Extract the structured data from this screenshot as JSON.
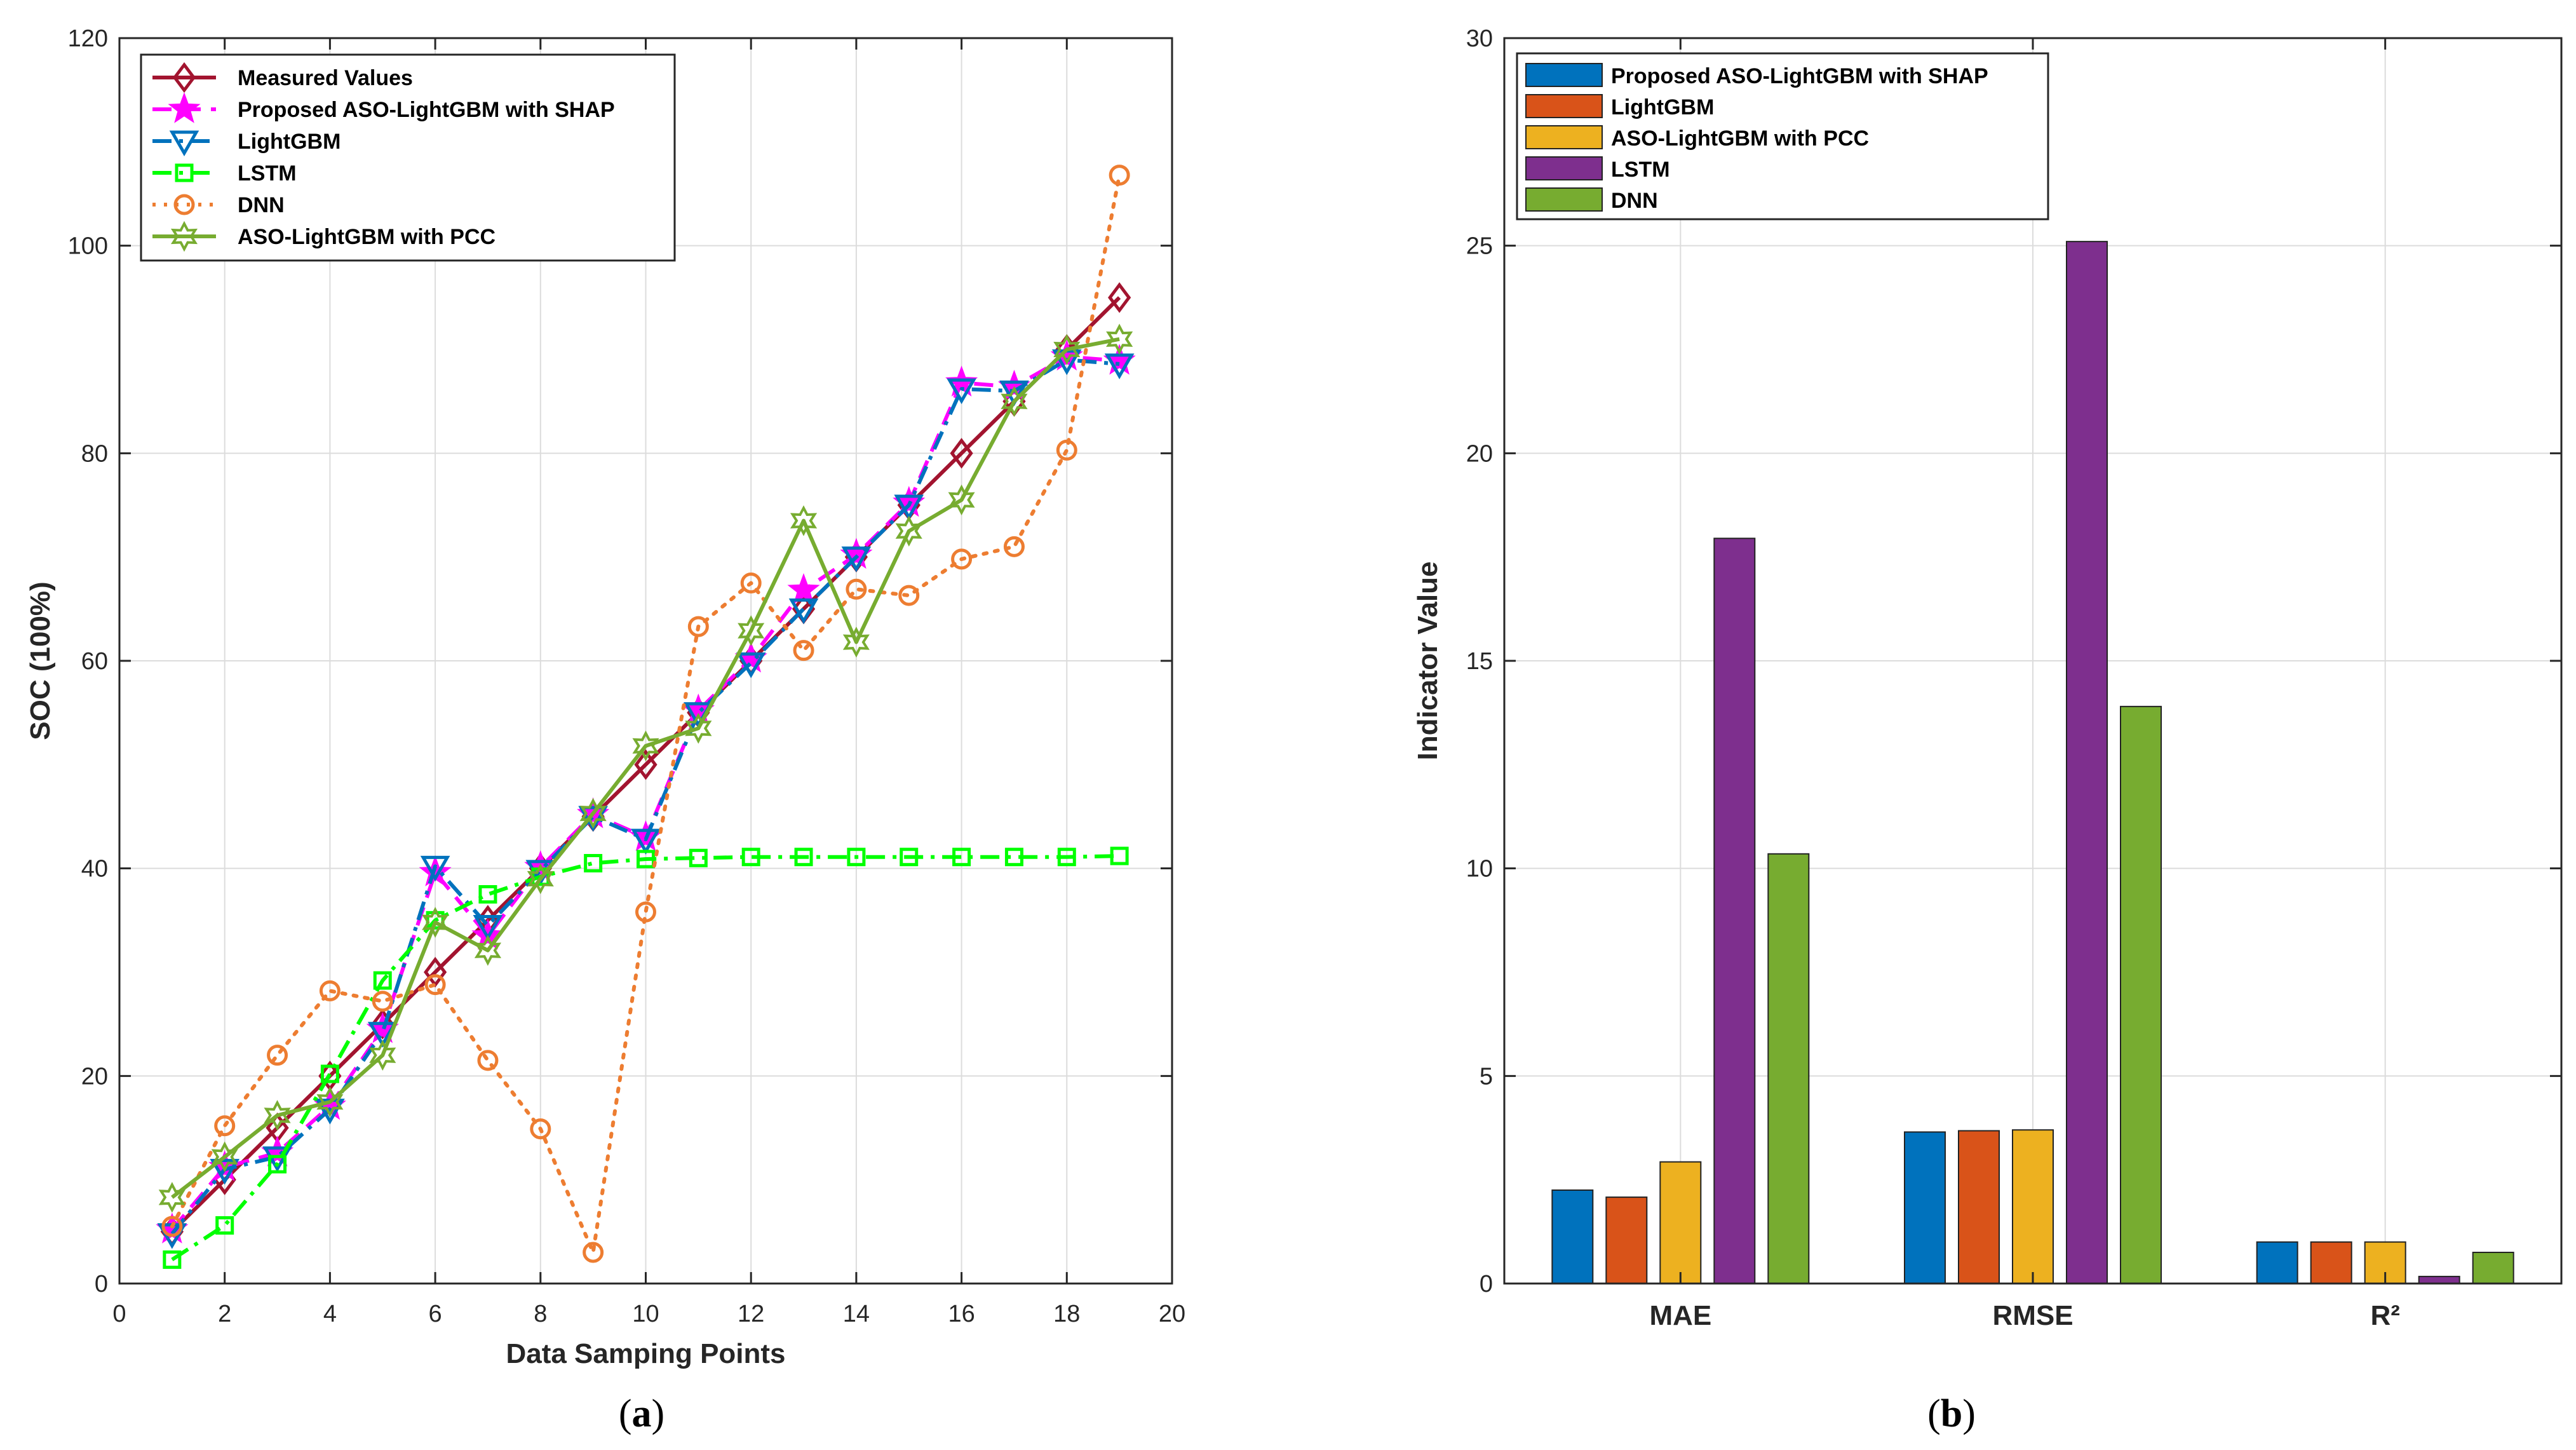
{
  "chart_data": [
    {
      "type": "line",
      "xlabel": "Data Samping Points",
      "ylabel": "SOC (100%)",
      "xlim": [
        0,
        20
      ],
      "ylim": [
        0,
        120
      ],
      "xticks": [
        0,
        2,
        4,
        6,
        8,
        10,
        12,
        14,
        16,
        18,
        20
      ],
      "yticks": [
        0,
        20,
        40,
        60,
        80,
        100,
        120
      ],
      "x": [
        1,
        2,
        3,
        4,
        5,
        6,
        7,
        8,
        9,
        10,
        11,
        12,
        13,
        14,
        15,
        16,
        17,
        18,
        19
      ],
      "legend_position": "top-left",
      "grid": true,
      "caption": {
        "open": "(",
        "letter": "a",
        "close": ")"
      },
      "series": [
        {
          "name": "Measured Values",
          "color": "#A2142F",
          "dash": "solid",
          "marker": "diamond",
          "values": [
            5,
            10,
            15,
            20,
            25,
            30,
            35,
            40,
            45,
            50,
            55,
            60,
            65,
            70,
            75,
            80,
            85,
            90,
            95
          ]
        },
        {
          "name": "Proposed ASO-LightGBM with SHAP",
          "color": "#FF00FF",
          "dash": "dash",
          "marker": "star",
          "values": [
            5.2,
            11.2,
            12.6,
            17.1,
            24.5,
            39.6,
            33.5,
            40.1,
            45.2,
            43.0,
            55.2,
            60.2,
            66.8,
            70.2,
            75.2,
            86.8,
            86.4,
            89.3,
            88.9
          ]
        },
        {
          "name": "LightGBM",
          "color": "#0072BD",
          "dash": "dashdot",
          "marker": "triangle-down",
          "values": [
            4.8,
            11.0,
            12.2,
            16.8,
            24.2,
            40.2,
            34.5,
            39.8,
            45.0,
            42.8,
            55.0,
            59.8,
            65.0,
            70.0,
            75.0,
            86.2,
            86.0,
            89.0,
            88.6
          ]
        },
        {
          "name": "LSTM",
          "color": "#00FF00",
          "dash": "dashdot",
          "marker": "square",
          "values": [
            2.3,
            5.6,
            11.5,
            20.2,
            29.2,
            35.0,
            37.5,
            39.2,
            40.5,
            40.9,
            41.0,
            41.1,
            41.1,
            41.1,
            41.1,
            41.1,
            41.1,
            41.1,
            41.2
          ]
        },
        {
          "name": "DNN",
          "color": "#ED7D31",
          "dash": "dot",
          "marker": "circle",
          "values": [
            5.5,
            15.2,
            22.0,
            28.2,
            27.2,
            28.8,
            21.5,
            14.9,
            3.0,
            35.8,
            63.3,
            67.5,
            61.0,
            66.9,
            66.3,
            69.8,
            71.0,
            80.3,
            106.8
          ]
        },
        {
          "name": "ASO-LightGBM with PCC",
          "color": "#77AC30",
          "dash": "solid",
          "marker": "hexagram",
          "values": [
            8.3,
            12.2,
            16.2,
            17.5,
            22.0,
            34.8,
            32.1,
            39.0,
            45.3,
            51.8,
            53.5,
            62.9,
            73.5,
            61.8,
            72.5,
            75.5,
            85.0,
            90.0,
            91.0
          ]
        }
      ]
    },
    {
      "type": "bar",
      "ylabel": "Indicator Value",
      "ylim": [
        0,
        30
      ],
      "yticks": [
        0,
        5,
        10,
        15,
        20,
        25,
        30
      ],
      "categories": [
        "MAE",
        "RMSE",
        "R²"
      ],
      "legend_position": "top-left",
      "grid": true,
      "caption": {
        "open": "(",
        "letter": "b",
        "close": ")"
      },
      "series": [
        {
          "name": "Proposed ASO-LightGBM with SHAP",
          "color": "#0072BD",
          "values": [
            2.25,
            3.65,
            1.0
          ]
        },
        {
          "name": "LightGBM",
          "color": "#D95319",
          "values": [
            2.08,
            3.68,
            1.0
          ]
        },
        {
          "name": "ASO-LightGBM with PCC",
          "color": "#EDB120",
          "values": [
            2.93,
            3.7,
            1.0
          ]
        },
        {
          "name": "LSTM",
          "color": "#7E2F8E",
          "values": [
            17.95,
            25.1,
            0.17
          ]
        },
        {
          "name": "DNN",
          "color": "#77AC30",
          "values": [
            10.35,
            13.9,
            0.75
          ]
        }
      ]
    }
  ]
}
